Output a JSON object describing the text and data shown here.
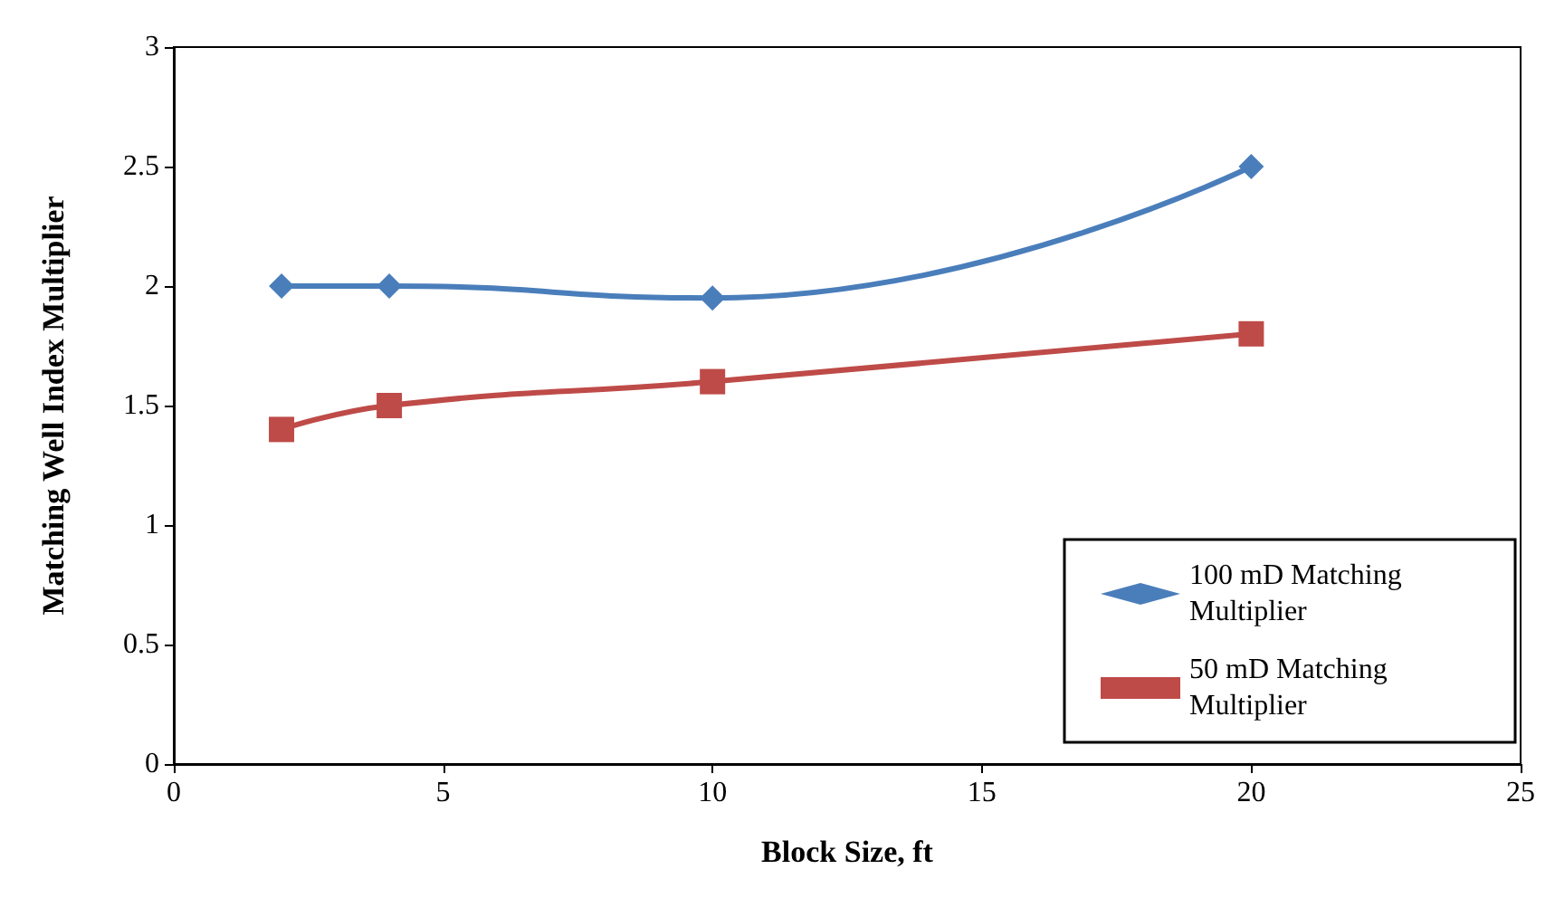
{
  "chart_data": {
    "type": "line",
    "xlabel": "Block Size, ft",
    "ylabel": "Matching Well Index Multiplier",
    "xlim": [
      0,
      25
    ],
    "xticks": [
      0,
      5,
      10,
      15,
      20,
      25
    ],
    "ylim": [
      0,
      3
    ],
    "yticks": [
      0,
      0.5,
      1,
      1.5,
      2,
      2.5,
      3
    ],
    "grid": false,
    "legend": "bottom right",
    "line_style": "solid",
    "series": [
      {
        "name": "100 mD Matching Multiplier",
        "color": "#4a7ebb",
        "marker": "diamond",
        "x": [
          2,
          4,
          10,
          20
        ],
        "values": [
          2,
          2,
          1.95,
          2.5
        ]
      },
      {
        "name": "50 mD Matching Multiplier",
        "color": "#be4b48",
        "marker": "square",
        "x": [
          2,
          4,
          10,
          20
        ],
        "values": [
          1.4,
          1.5,
          1.6,
          1.8
        ]
      }
    ]
  }
}
